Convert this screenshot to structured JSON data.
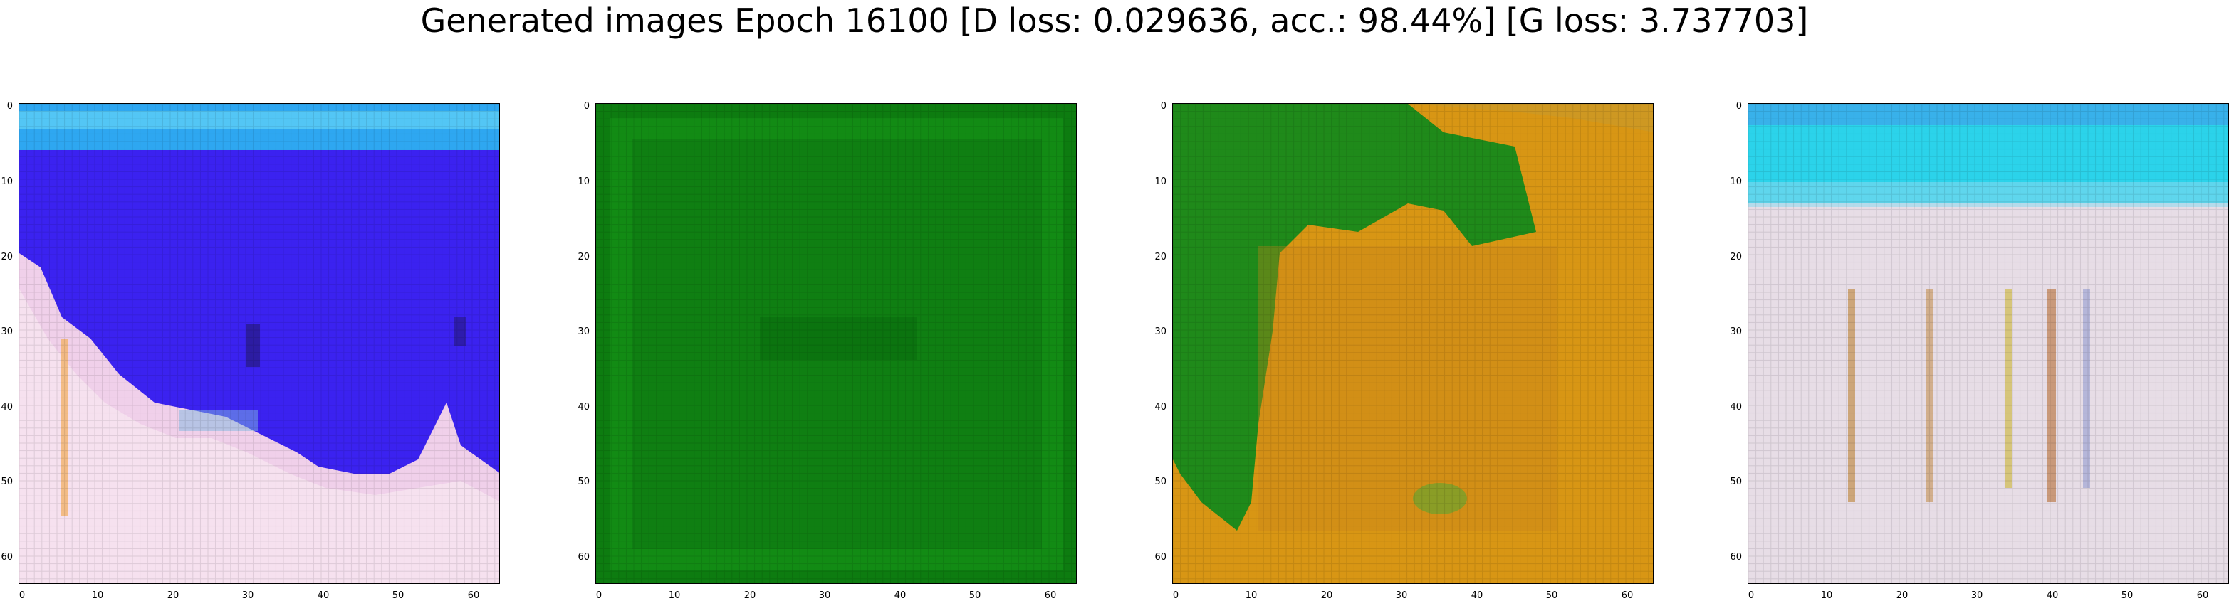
{
  "suptitle": "Generated images Epoch 16100 [D loss: 0.029636, acc.: 98.44%] [G loss: 3.737703]",
  "axes": {
    "x_ticks": [
      "0",
      "10",
      "20",
      "30",
      "40",
      "50",
      "60"
    ],
    "y_ticks": [
      "0",
      "10",
      "20",
      "30",
      "40",
      "50",
      "60"
    ]
  },
  "images": [
    {
      "id": "sample-1",
      "description_colors": [
        "#3f1ff0",
        "#2ec8f5",
        "#f2d6ea"
      ]
    },
    {
      "id": "sample-2",
      "description_colors": [
        "#0f8a12",
        "#0b6f0d"
      ]
    },
    {
      "id": "sample-3",
      "description_colors": [
        "#1f8a1a",
        "#d89a14"
      ]
    },
    {
      "id": "sample-4",
      "description_colors": [
        "#2bd4ea",
        "#e6dce6",
        "#b86a2a"
      ]
    }
  ]
}
